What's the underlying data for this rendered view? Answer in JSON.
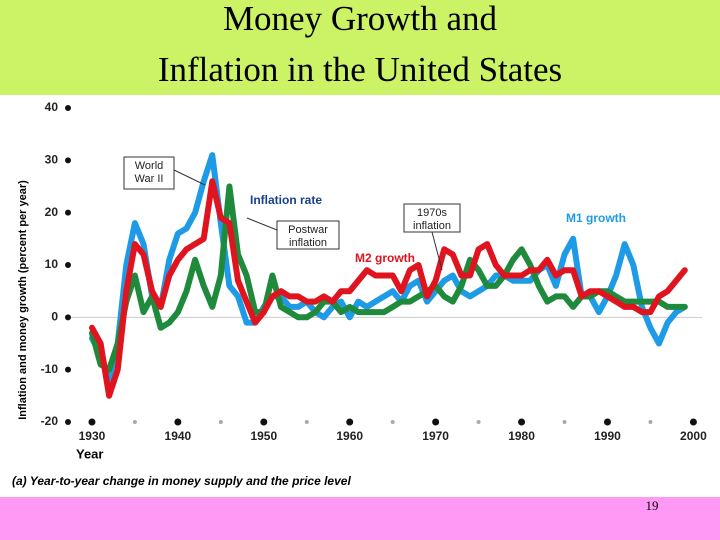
{
  "slide": {
    "title_lines": [
      "Money Growth and",
      "Inflation in the United States"
    ],
    "page_number": 19
  },
  "chart_data": {
    "type": "line",
    "x_label": "Year",
    "y_label": "Inflation and money growth (percent per year)",
    "caption": "(a) Year-to-year change in money supply and the price level",
    "x": [
      1930,
      1931,
      1932,
      1933,
      1934,
      1935,
      1936,
      1937,
      1938,
      1939,
      1940,
      1941,
      1942,
      1943,
      1944,
      1945,
      1946,
      1947,
      1948,
      1949,
      1950,
      1951,
      1952,
      1953,
      1954,
      1955,
      1956,
      1957,
      1958,
      1959,
      1960,
      1961,
      1962,
      1963,
      1964,
      1965,
      1966,
      1967,
      1968,
      1969,
      1970,
      1971,
      1972,
      1973,
      1974,
      1975,
      1976,
      1977,
      1978,
      1979,
      1980,
      1981,
      1982,
      1983,
      1984,
      1985,
      1986,
      1987,
      1988,
      1989,
      1990,
      1991,
      1992,
      1993,
      1994,
      1995,
      1996,
      1997,
      1998,
      1999
    ],
    "series": [
      {
        "name": "M1 growth",
        "color": "#1e9be6",
        "values": [
          -4,
          -7,
          -12,
          -5,
          10,
          18,
          14,
          4,
          2,
          11,
          16,
          17,
          20,
          26,
          31,
          18,
          6,
          4,
          -1,
          -1,
          2,
          4,
          4,
          2,
          2,
          3,
          1,
          0,
          2,
          3,
          0,
          3,
          2,
          3,
          4,
          5,
          3,
          6,
          7,
          3,
          5,
          7,
          8,
          5,
          4,
          5,
          6,
          8,
          8,
          7,
          7,
          7,
          9,
          10,
          6,
          12,
          15,
          4,
          4,
          1,
          4,
          8,
          14,
          10,
          2,
          -2,
          -5,
          -1,
          1,
          2
        ]
      },
      {
        "name": "Inflation rate",
        "color": "#1f8a3c",
        "values": [
          -3,
          -9,
          -10,
          -5,
          3,
          8,
          1,
          4,
          -2,
          -1,
          1,
          5,
          11,
          6,
          2,
          8,
          25,
          12,
          8,
          1,
          1,
          8,
          2,
          1,
          0,
          0,
          1,
          3,
          3,
          1,
          2,
          1,
          1,
          1,
          1,
          2,
          3,
          3,
          4,
          5,
          6,
          4,
          3,
          6,
          11,
          9,
          6,
          6,
          8,
          11,
          13,
          10,
          6,
          3,
          4,
          4,
          2,
          4,
          4,
          5,
          5,
          4,
          3,
          3,
          3,
          3,
          3,
          2,
          2,
          2
        ]
      },
      {
        "name": "M2 growth",
        "color": "#e0141e",
        "values": [
          -2,
          -5,
          -15,
          -10,
          5,
          14,
          12,
          5,
          2,
          8,
          11,
          13,
          14,
          15,
          26,
          19,
          18,
          7,
          3,
          -1,
          1,
          4,
          5,
          4,
          4,
          3,
          3,
          4,
          3,
          5,
          5,
          7,
          9,
          8,
          8,
          8,
          5,
          9,
          10,
          4,
          7,
          13,
          12,
          8,
          8,
          13,
          14,
          10,
          8,
          8,
          8,
          9,
          9,
          11,
          8,
          9,
          9,
          4,
          5,
          5,
          4,
          3,
          2,
          2,
          1,
          1,
          4,
          5,
          7,
          9
        ]
      }
    ],
    "annotations": [
      {
        "lines": [
          "World",
          "War II"
        ]
      },
      {
        "lines": [
          "Postwar",
          "inflation"
        ]
      },
      {
        "lines": [
          "1970s",
          "inflation"
        ]
      }
    ],
    "xlim": [
      1925,
      2001
    ],
    "ylim": [
      -20,
      40
    ],
    "xticks": [
      1930,
      1940,
      1950,
      1960,
      1970,
      1980,
      1990,
      2000
    ],
    "xminorticks": [
      1935,
      1945,
      1955,
      1965,
      1975,
      1985,
      1995
    ],
    "yticks": [
      -20,
      -10,
      0,
      10,
      20,
      30,
      40
    ]
  }
}
